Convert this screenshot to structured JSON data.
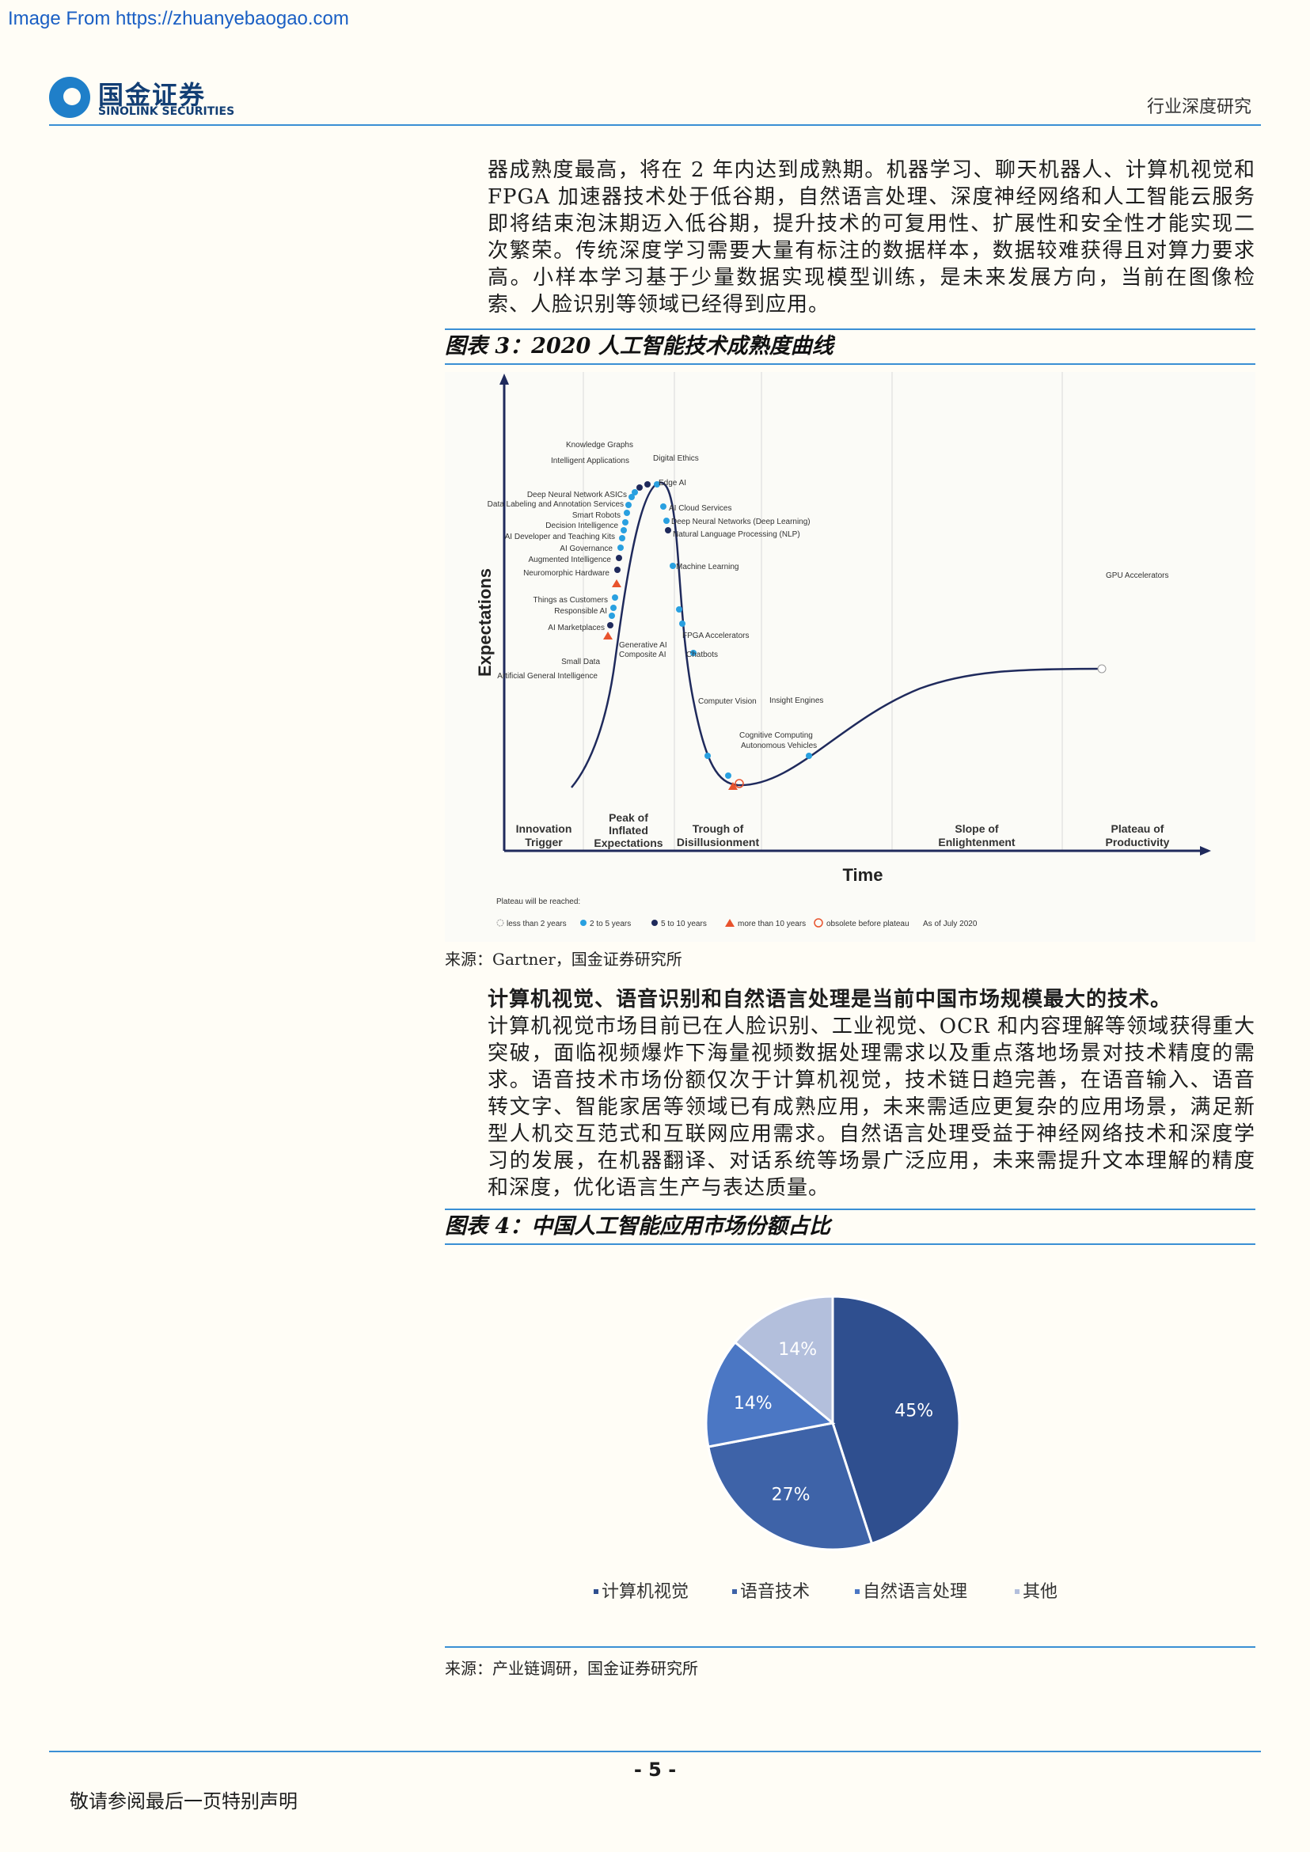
{
  "watermark": "Image From https://zhuanyebaogao.com",
  "header": {
    "logo_cn": "国金证券",
    "logo_en": "SINOLINK SECURITIES",
    "right_text": "行业深度研究"
  },
  "para1": "器成熟度最高，将在 2 年内达到成熟期。机器学习、聊天机器人、计算机视觉和 FPGA 加速器技术处于低谷期，自然语言处理、深度神经网络和人工智能云服务即将结束泡沫期迈入低谷期，提升技术的可复用性、扩展性和安全性才能实现二次繁荣。传统深度学习需要大量有标注的数据样本，数据较难获得且对算力要求高。小样本学习基于少量数据实现模型训练，是未来发展方向，当前在图像检索、人脸识别等领域已经得到应用。",
  "fig3": {
    "title": "图表 3：2020 人工智能技术成熟度曲线",
    "source": "来源：Gartner，国金证券研究所",
    "y_axis": "Expectations",
    "x_axis": "Time",
    "phases": [
      "Innovation Trigger",
      "Peak of Inflated Expectations",
      "Trough of Disillusionment",
      "Slope of Enlightenment",
      "Plateau of Productivity"
    ],
    "legend_title": "Plateau will be reached:",
    "legend": [
      "less than 2 years",
      "2 to 5 years",
      "5 to 10 years",
      "more than 10 years",
      "obsolete before plateau"
    ],
    "as_of": "As of July 2020",
    "labels_left": [
      "Knowledge Graphs",
      "Intelligent Applications",
      "Deep Neural Network ASICs",
      "Data Labeling and Annotation Services",
      "Smart Robots",
      "Decision Intelligence",
      "AI Developer and Teaching Kits",
      "AI Governance",
      "Augmented Intelligence",
      "Neuromorphic Hardware",
      "Things as Customers",
      "Responsible AI",
      "AI Marketplaces",
      "Small Data",
      "Artificial General Intelligence"
    ],
    "labels_right": [
      "Digital Ethics",
      "Edge AI",
      "AI Cloud Services",
      "Deep Neural Networks (Deep Learning)",
      "Natural Language Processing (NLP)",
      "Machine Learning",
      "Generative AI",
      "Composite AI",
      "FPGA Accelerators",
      "Chatbots",
      "Computer Vision",
      "Cognitive Computing",
      "Autonomous Vehicles",
      "Insight Engines",
      "GPU Accelerators"
    ]
  },
  "para2_bold": "计算机视觉、语音识别和自然语言处理是当前中国市场规模最大的技术。",
  "para2": "计算机视觉市场目前已在人脸识别、工业视觉、OCR 和内容理解等领域获得重大突破，面临视频爆炸下海量视频数据处理需求以及重点落地场景对技术精度的需求。语音技术市场份额仅次于计算机视觉，技术链日趋完善，在语音输入、语音转文字、智能家居等领域已有成熟应用，未来需适应更复杂的应用场景，满足新型人机交互范式和互联网应用需求。自然语言处理受益于神经网络技术和深度学习的发展，在机器翻译、对话系统等场景广泛应用，未来需提升文本理解的精度和深度，优化语言生产与表达质量。",
  "fig4": {
    "title": "图表 4：中国人工智能应用市场份额占比",
    "source": "来源：产业链调研，国金证券研究所"
  },
  "chart_data": {
    "type": "pie",
    "categories": [
      "计算机视觉",
      "语音技术",
      "自然语言处理",
      "其他"
    ],
    "values": [
      45,
      27,
      14,
      14
    ],
    "labels": [
      "45%",
      "27%",
      "14%",
      "14%"
    ],
    "colors": [
      "#2f4f8f",
      "#3e63a8",
      "#4b77c4",
      "#b3bfdc"
    ],
    "legend_position": "bottom"
  },
  "page_number": "- 5 -",
  "footer": "敬请参阅最后一页特别声明"
}
